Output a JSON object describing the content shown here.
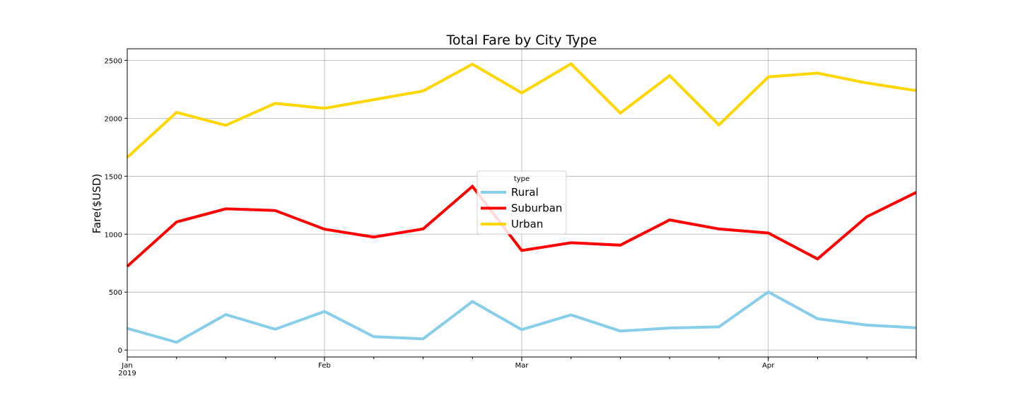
{
  "chart_data": {
    "type": "line",
    "title": "Total Fare by City Type",
    "xlabel": "",
    "ylabel": "Fare($USD)",
    "grid": true,
    "legend": {
      "title": "type",
      "placement": "center"
    },
    "x": [
      "2019-01-01",
      "2019-01-08",
      "2019-01-15",
      "2019-01-22",
      "2019-01-29",
      "2019-02-05",
      "2019-02-12",
      "2019-02-19",
      "2019-02-26",
      "2019-03-05",
      "2019-03-12",
      "2019-03-19",
      "2019-03-26",
      "2019-04-02",
      "2019-04-09",
      "2019-04-16",
      "2019-04-23"
    ],
    "x_range": [
      "2019-01-01",
      "2019-04-23"
    ],
    "ylim": [
      -60,
      2600
    ],
    "yticks": [
      0,
      500,
      1000,
      1500,
      2000,
      2500
    ],
    "xticks_major": [
      {
        "date": "2019-01-01",
        "label": "Jan",
        "sublabel": "2019"
      },
      {
        "date": "2019-01-29",
        "label": "Feb",
        "sublabel": ""
      },
      {
        "date": "2019-02-26",
        "label": "Mar",
        "sublabel": ""
      },
      {
        "date": "2019-04-02",
        "label": "Apr",
        "sublabel": ""
      }
    ],
    "series": [
      {
        "name": "Rural",
        "color": "#87ceeb",
        "values": [
          187,
          67,
          306,
          180,
          333,
          115,
          96,
          419,
          176,
          303,
          164,
          190,
          200,
          501,
          270,
          215,
          192
        ]
      },
      {
        "name": "Suburban",
        "color": "#ff0000",
        "values": [
          722,
          1105,
          1219,
          1204,
          1043,
          975,
          1045,
          1413,
          859,
          926,
          905,
          1123,
          1045,
          1010,
          786,
          1151,
          1360
        ]
      },
      {
        "name": "Urban",
        "color": "#ffd700",
        "values": [
          1662,
          2051,
          1939,
          2129,
          2086,
          2161,
          2236,
          2467,
          2219,
          2470,
          2045,
          2368,
          1943,
          2357,
          2390,
          2305,
          2239
        ]
      }
    ]
  }
}
